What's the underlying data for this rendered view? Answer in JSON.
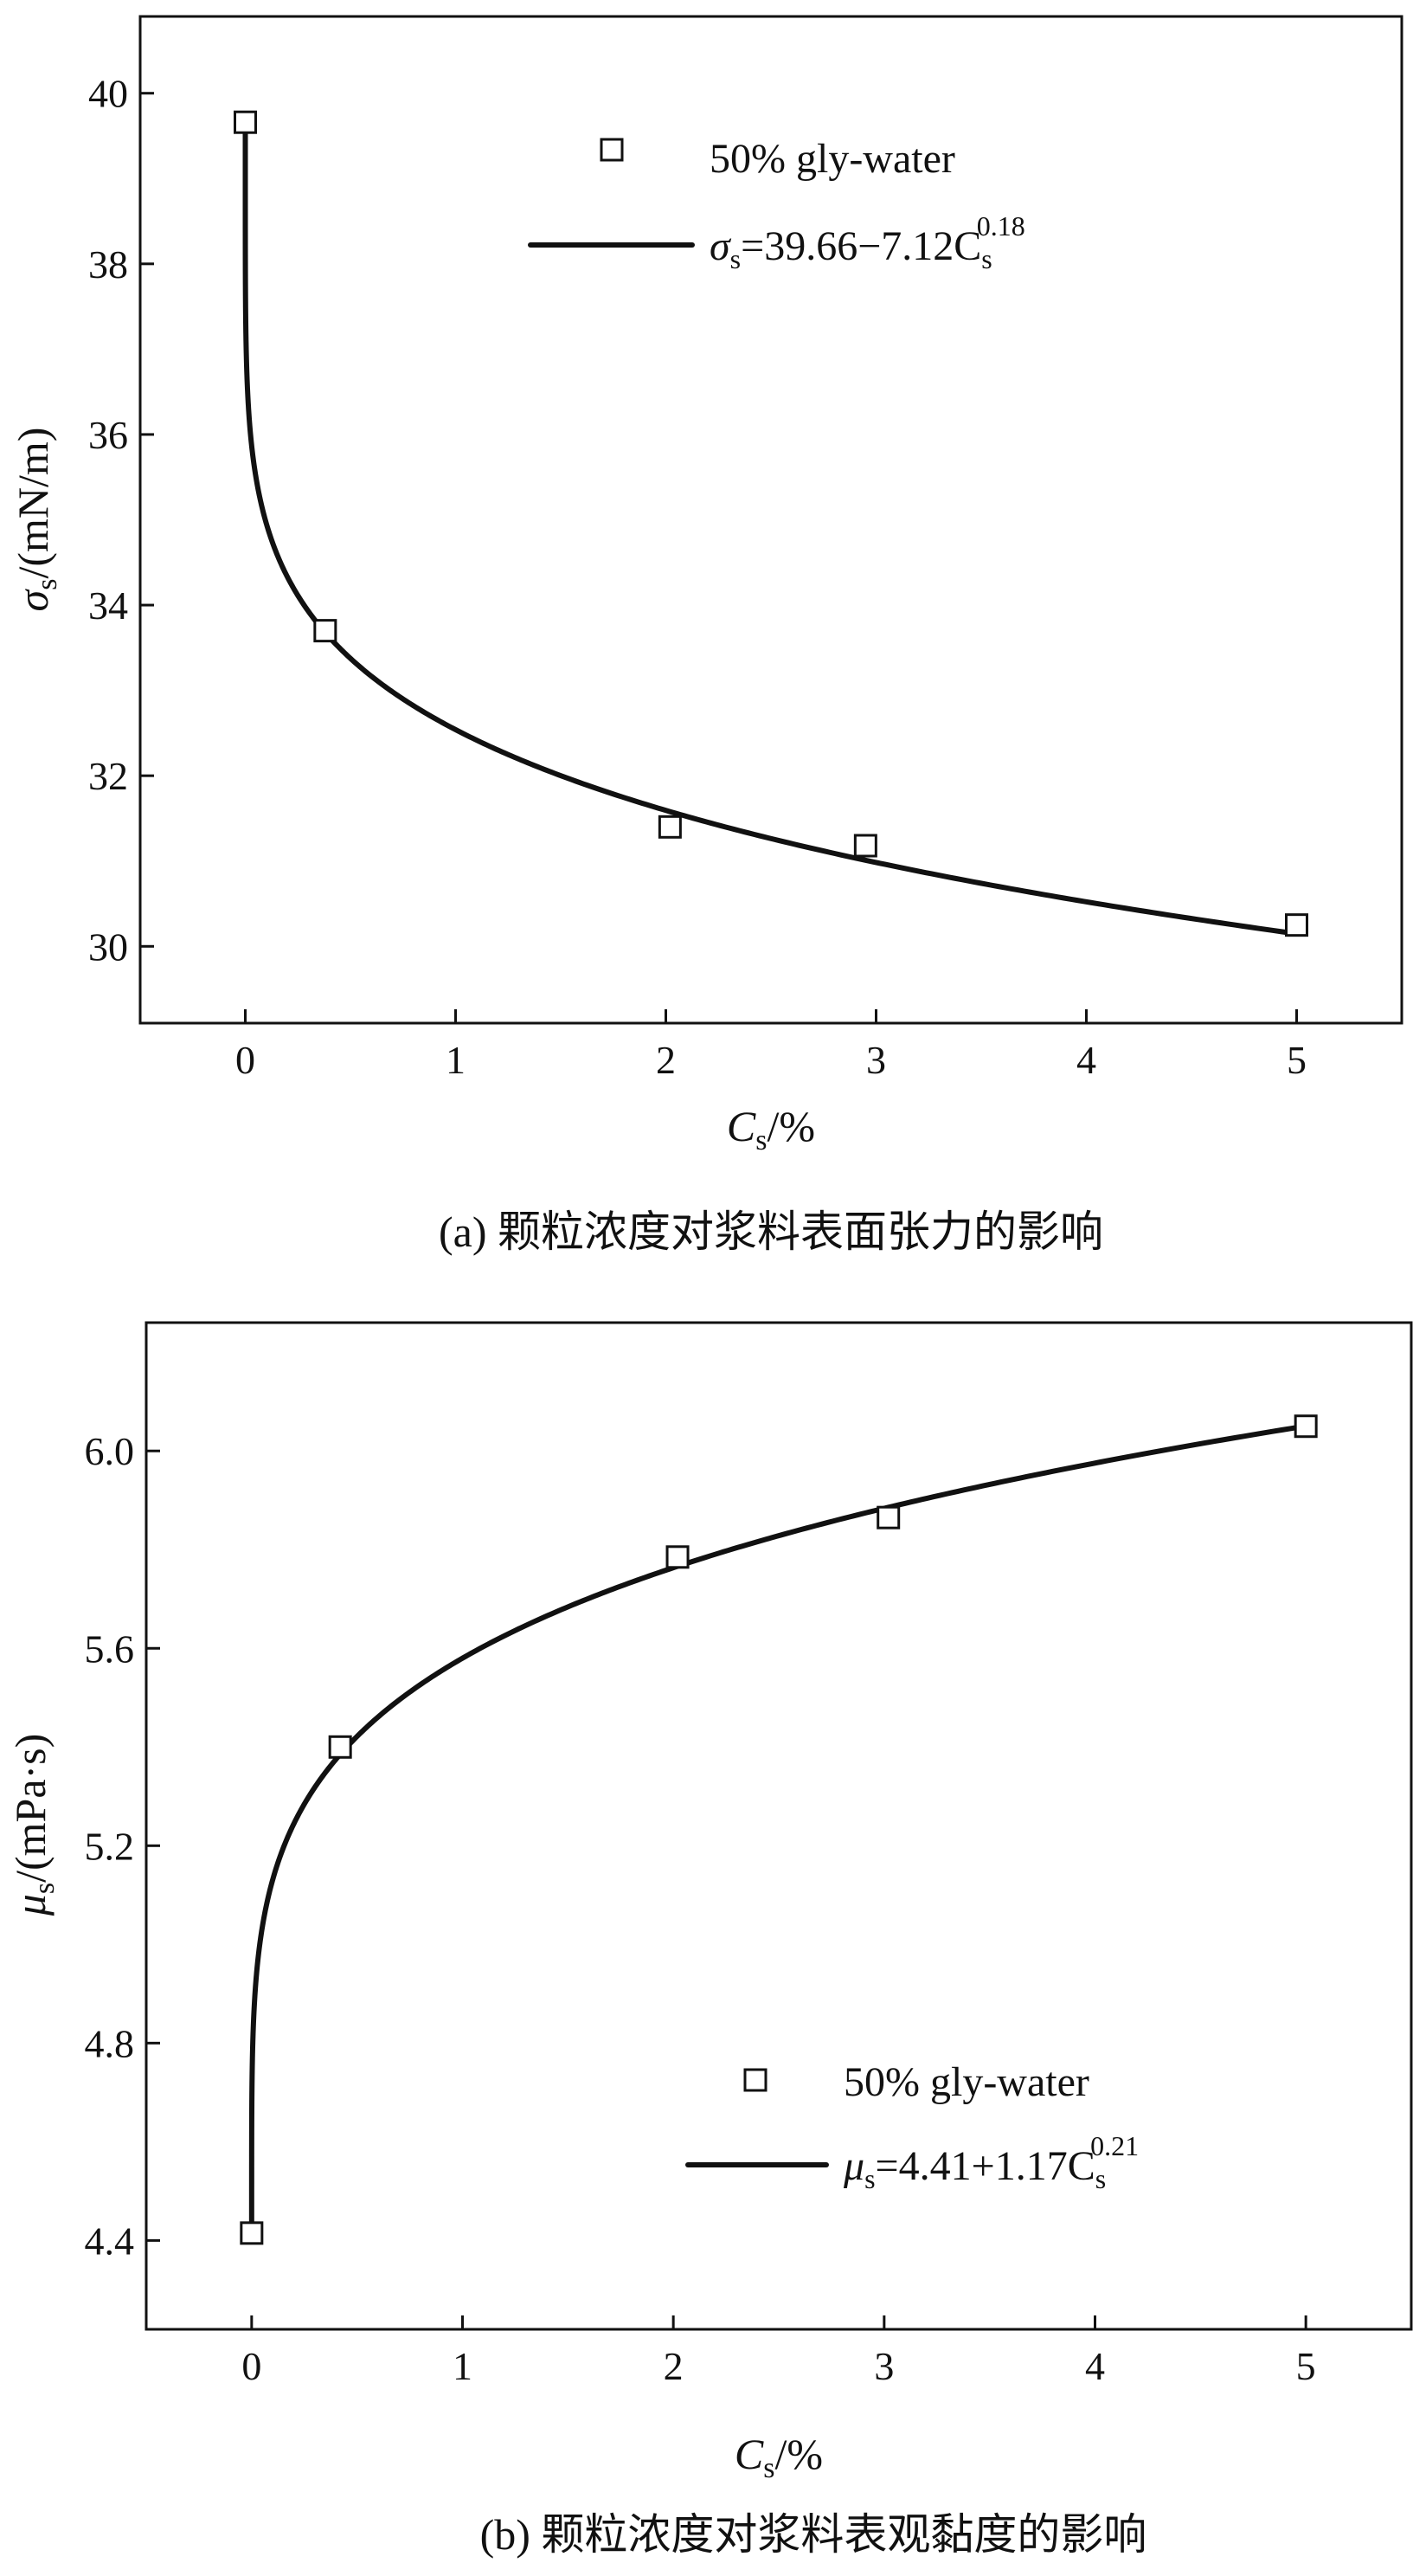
{
  "chart_data": [
    {
      "type": "scatter",
      "panel": "a",
      "caption": "(a) 颗粒浓度对浆料表面张力的影响",
      "xlabel": "C_s/%",
      "ylabel": "σ_s/(mN/m)",
      "xlim": [
        -0.5,
        5.5
      ],
      "ylim": [
        29.1,
        40.9
      ],
      "xticks": [
        0,
        1,
        2,
        3,
        4,
        5
      ],
      "yticks": [
        30,
        32,
        34,
        36,
        38,
        40
      ],
      "series": [
        {
          "name": "50% gly-water",
          "kind": "markers",
          "x": [
            0,
            0.38,
            2.02,
            2.95,
            5.0
          ],
          "y": [
            39.66,
            33.7,
            31.4,
            31.18,
            30.25
          ]
        },
        {
          "name": "σs=39.66−7.12Cs^0.18",
          "kind": "fit",
          "a": 39.66,
          "b": -7.12,
          "exp": 0.18,
          "x_range": [
            0,
            5.0
          ]
        }
      ],
      "legend": {
        "position": "top-center",
        "marker_label": "50% gly-water",
        "fit_prefix": "σ",
        "fit_sub": "s",
        "fit_mid": "=39.66−7.12C",
        "fit_csub": "s",
        "fit_sup": "0.18"
      },
      "grid": false
    },
    {
      "type": "scatter",
      "panel": "b",
      "caption": "(b) 颗粒浓度对浆料表观黏度的影响",
      "xlabel": "C_s/%",
      "ylabel": "μ_s/(mPa·s)",
      "xlim": [
        -0.5,
        5.5
      ],
      "ylim": [
        4.22,
        6.26
      ],
      "xticks": [
        0,
        1,
        2,
        3,
        4,
        5
      ],
      "yticks": [
        "4.4",
        "4.8",
        "5.2",
        "5.6",
        "6.0"
      ],
      "series": [
        {
          "name": "50% gly-water",
          "kind": "markers",
          "x": [
            0,
            0.42,
            2.02,
            3.02,
            5.0
          ],
          "y": [
            4.415,
            5.4,
            5.785,
            5.865,
            6.05
          ]
        },
        {
          "name": "μs=4.41+1.17Cs^0.21",
          "kind": "fit",
          "a": 4.41,
          "b": 1.17,
          "exp": 0.21,
          "x_range": [
            0,
            5.0
          ]
        }
      ],
      "legend": {
        "position": "bottom-right",
        "marker_label": "50% gly-water",
        "fit_prefix": "μ",
        "fit_sub": "s",
        "fit_mid": "=4.41+1.17C",
        "fit_csub": "s",
        "fit_sup": "0.21"
      },
      "grid": false
    }
  ]
}
